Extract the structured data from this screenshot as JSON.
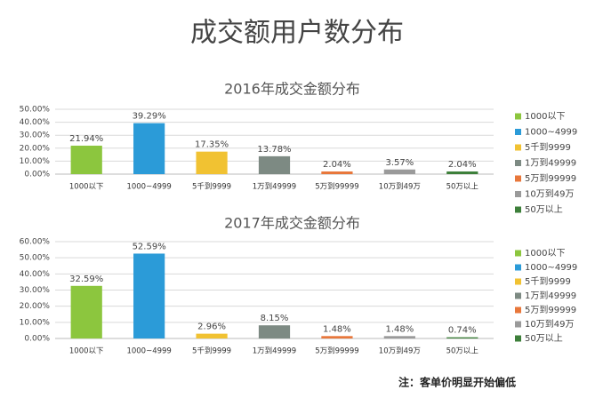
{
  "title": "成交额用户数分布",
  "note": "注：客单价明显开始偏低",
  "chart_data": [
    {
      "type": "bar",
      "title": "2016年成交金额分布",
      "categories": [
        "1000以下",
        "1000~4999",
        "5千到9999",
        "1万到49999",
        "5万到99999",
        "10万到49万",
        "50万以上"
      ],
      "values": [
        21.94,
        39.29,
        17.35,
        13.78,
        2.04,
        3.57,
        2.04
      ],
      "value_labels": [
        "21.94%",
        "39.29%",
        "17.35%",
        "13.78%",
        "2.04%",
        "3.57%",
        "2.04%"
      ],
      "colors": [
        "#8cc63e",
        "#2b9bd8",
        "#f1c232",
        "#7d8a83",
        "#e8773b",
        "#9a9a9a",
        "#3d7f3a"
      ],
      "ylim": [
        0,
        50
      ],
      "yticks": [
        {
          "value": 0,
          "label": "0.00%"
        },
        {
          "value": 10,
          "label": "10.00%"
        },
        {
          "value": 20,
          "label": "20.00%"
        },
        {
          "value": 30,
          "label": "30.00%"
        },
        {
          "value": 40,
          "label": "40.00%"
        },
        {
          "value": 50,
          "label": "50.00%"
        }
      ],
      "grid": true
    },
    {
      "type": "bar",
      "title": "2017年成交金额分布",
      "categories": [
        "1000以下",
        "1000~4999",
        "5千到9999",
        "1万到49999",
        "5万到99999",
        "10万到49万",
        "50万以上"
      ],
      "values": [
        32.59,
        52.59,
        2.96,
        8.15,
        1.48,
        1.48,
        0.74
      ],
      "value_labels": [
        "32.59%",
        "52.59%",
        "2.96%",
        "8.15%",
        "1.48%",
        "1.48%",
        "0.74%"
      ],
      "colors": [
        "#8cc63e",
        "#2b9bd8",
        "#f1c232",
        "#7d8a83",
        "#e8773b",
        "#9a9a9a",
        "#3d7f3a"
      ],
      "ylim": [
        0,
        60
      ],
      "yticks": [
        {
          "value": 0,
          "label": "0.00%"
        },
        {
          "value": 10,
          "label": "10.00%"
        },
        {
          "value": 20,
          "label": "20.00%"
        },
        {
          "value": 30,
          "label": "30.00%"
        },
        {
          "value": 40,
          "label": "40.00%"
        },
        {
          "value": 50,
          "label": "50.00%"
        },
        {
          "value": 60,
          "label": "60.00%"
        }
      ],
      "grid": true
    }
  ]
}
